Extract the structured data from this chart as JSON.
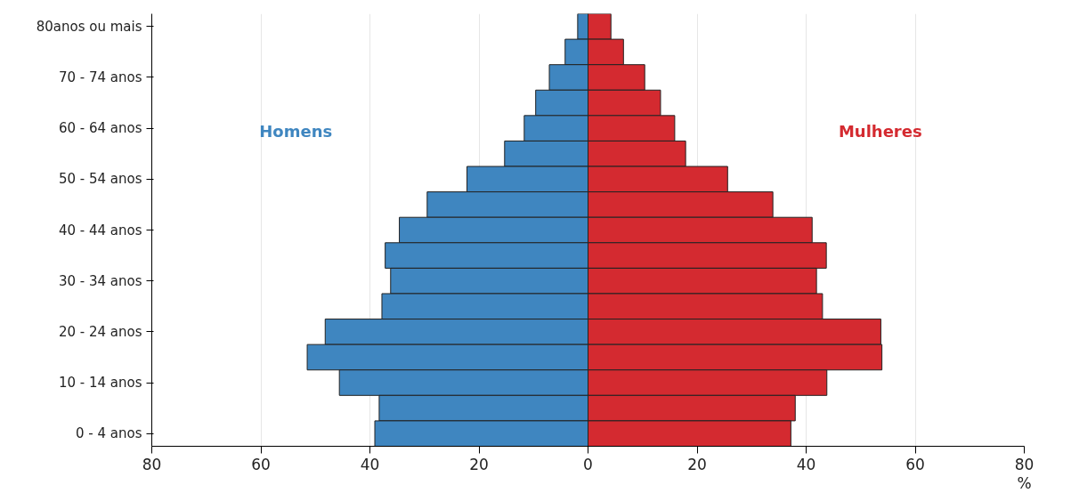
{
  "chart_data": {
    "type": "bar",
    "orientation": "horizontal",
    "xlabel": "%",
    "categories": [
      "80anos ou mais",
      null,
      "70 - 74 anos",
      null,
      "60 - 64 anos",
      null,
      "50 - 54 anos",
      null,
      "40 - 44 anos",
      null,
      "30 - 34 anos",
      null,
      "20 - 24 anos",
      null,
      "10 - 14 anos",
      null,
      "0 - 4 anos"
    ],
    "series": [
      {
        "name": "Homens",
        "color": "#3f86c0",
        "values": [
          -1.9,
          -4.2,
          -7.1,
          -9.6,
          -11.7,
          -15.3,
          -22.2,
          -29.5,
          -34.6,
          -37.2,
          -36.2,
          -37.8,
          -48.2,
          -51.5,
          -45.6,
          -38.3,
          -39.1
        ]
      },
      {
        "name": "Mulheres",
        "color": "#d42a30",
        "values": [
          4.2,
          6.5,
          10.4,
          13.3,
          15.9,
          17.9,
          25.6,
          33.9,
          41.1,
          43.7,
          41.9,
          43.0,
          53.7,
          53.9,
          43.8,
          38.0,
          37.2
        ]
      }
    ],
    "xlim": [
      -80,
      80
    ],
    "xticks": [
      {
        "value": -80,
        "label": "80"
      },
      {
        "value": -60,
        "label": "60"
      },
      {
        "value": -40,
        "label": "40"
      },
      {
        "value": -20,
        "label": "20"
      },
      0,
      20,
      40,
      60,
      80
    ],
    "grid": "x",
    "legend": false,
    "stacked": true
  }
}
